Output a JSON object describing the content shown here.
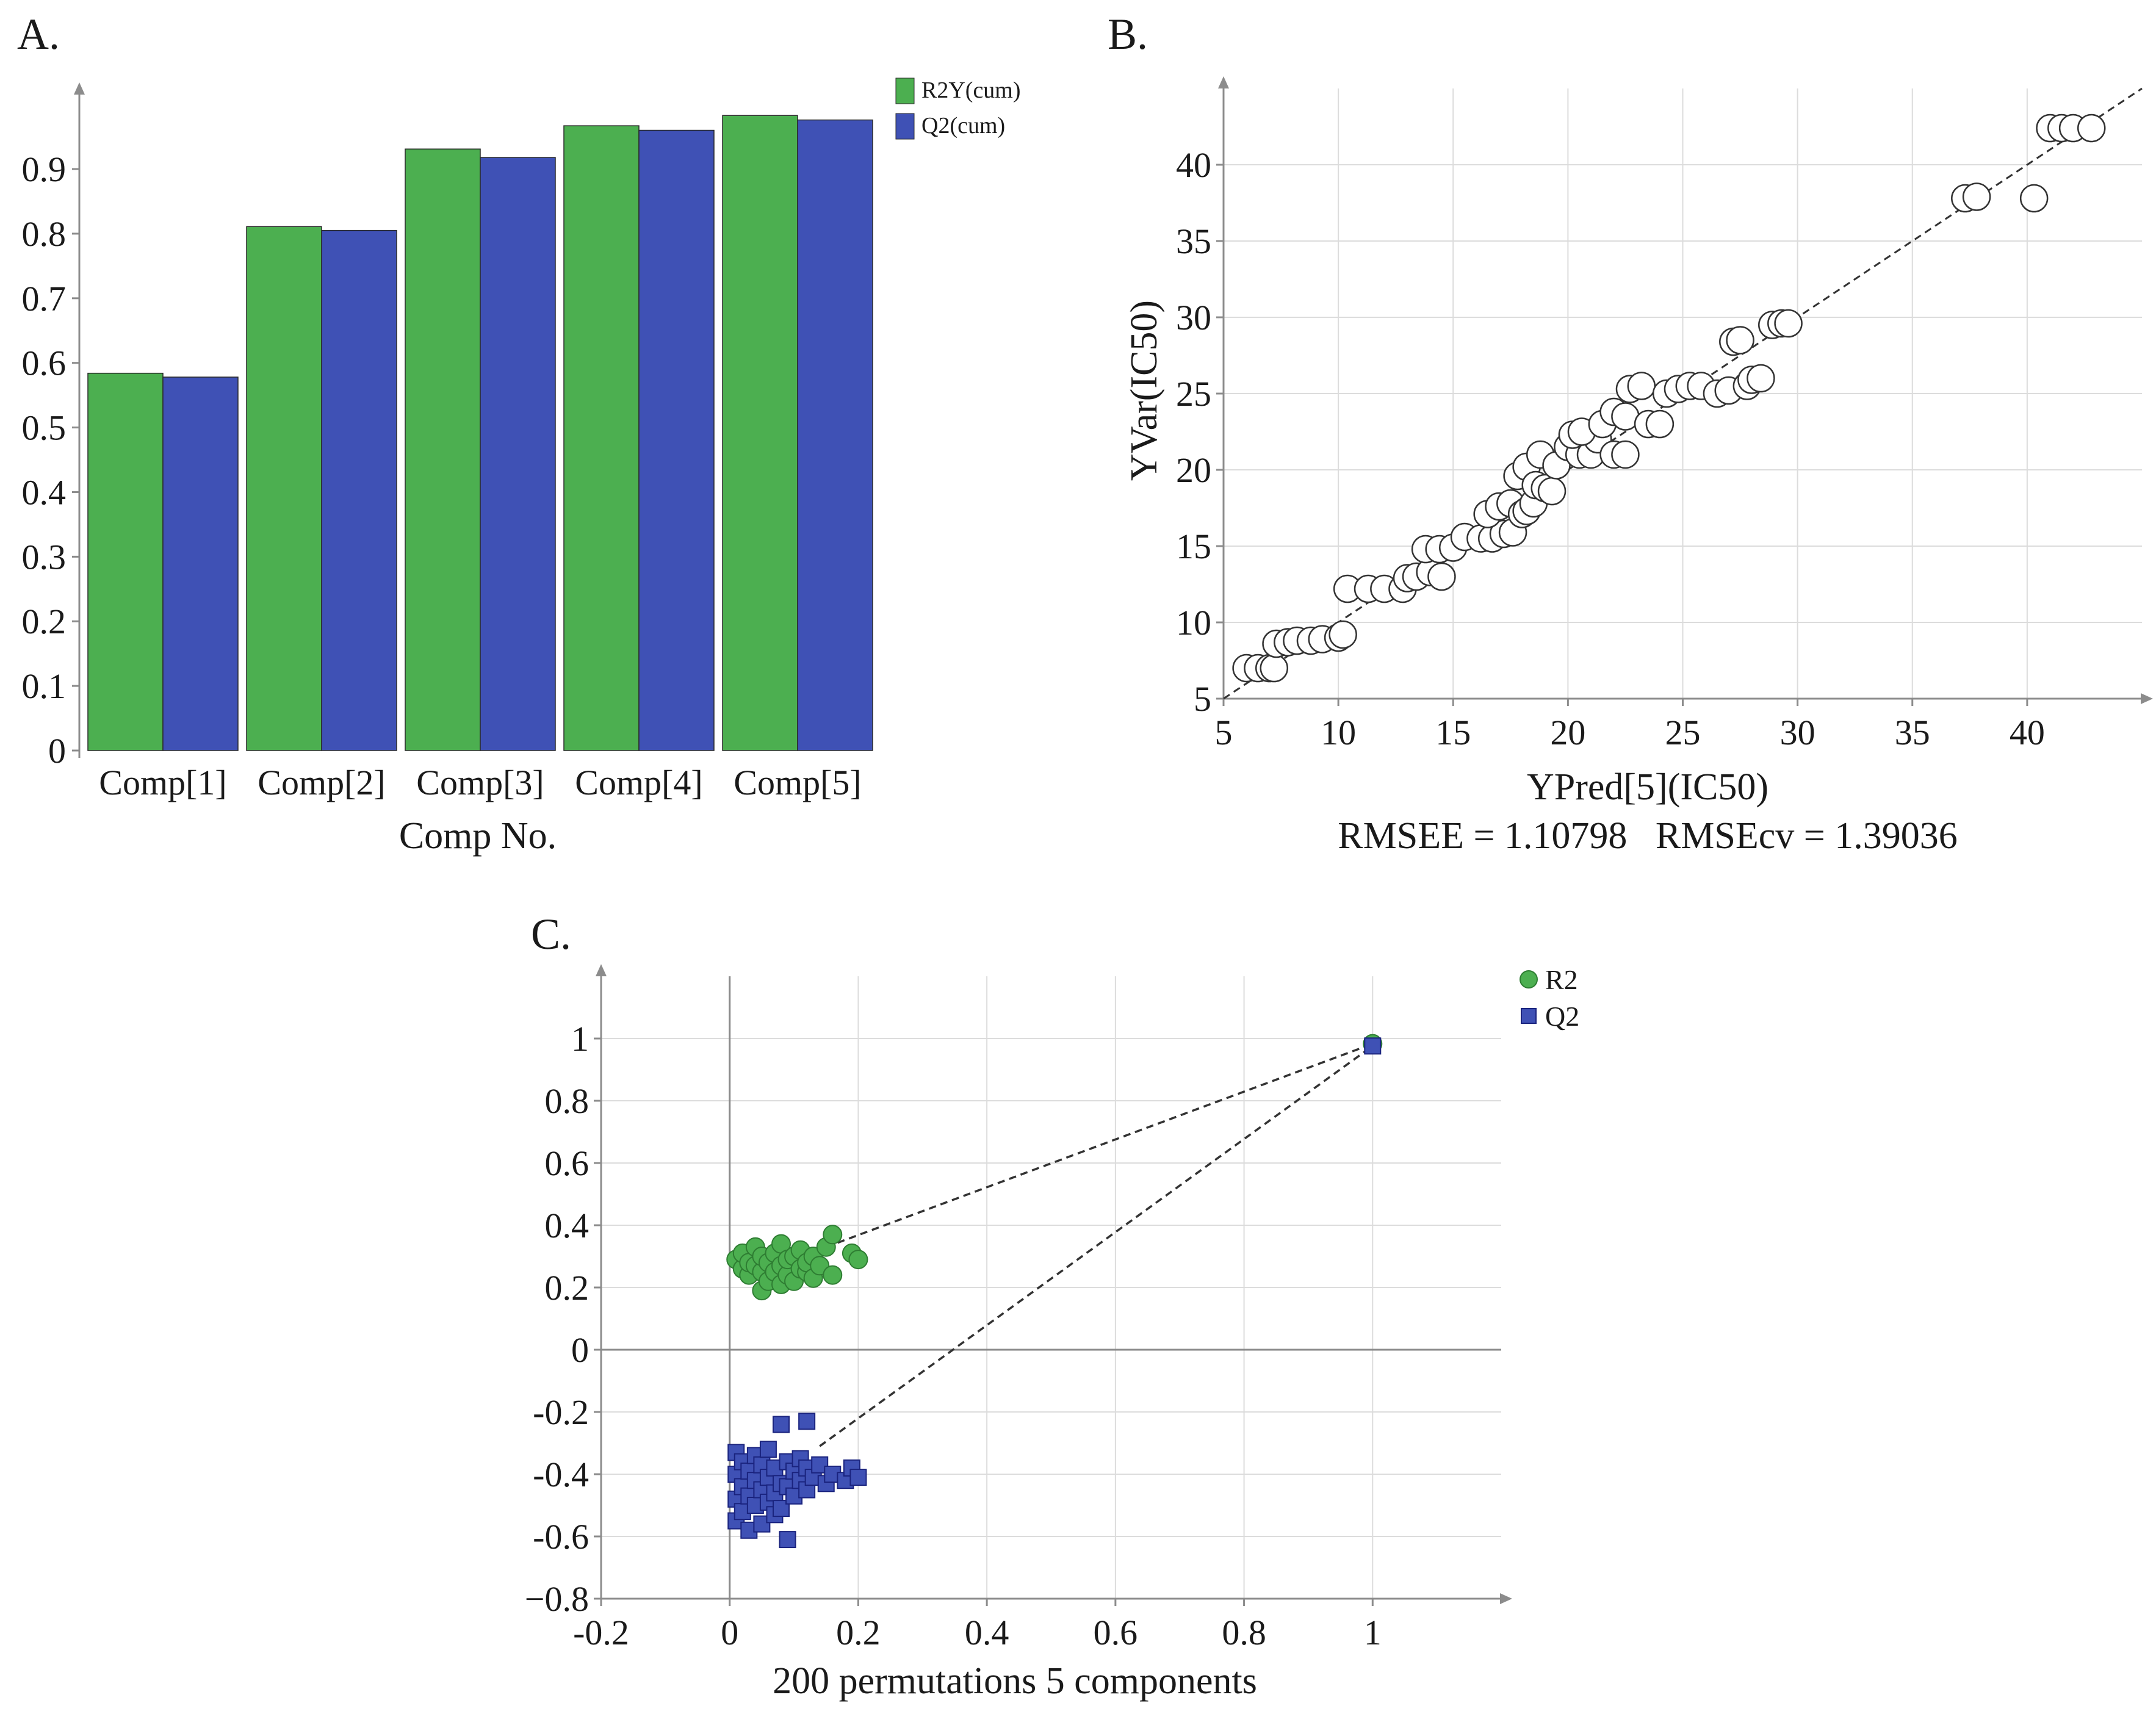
{
  "colors": {
    "green": "#4caf50",
    "blue": "#3f51b5",
    "grid": "#dcdcdc",
    "axis": "#8c8c8c",
    "dashed": "#333333"
  },
  "chart_data": [
    {
      "panel": "A.",
      "type": "bar",
      "title": "",
      "xlabel": "Comp No.",
      "ylabel": "",
      "categories": [
        "Comp[1]",
        "Comp[2]",
        "Comp[3]",
        "Comp[4]",
        "Comp[5]"
      ],
      "series": [
        {
          "name": "R2Y(cum)",
          "color": "#4caf50",
          "values": [
            0.584,
            0.811,
            0.931,
            0.967,
            0.983
          ]
        },
        {
          "name": "Q2(cum)",
          "color": "#3f51b5",
          "values": [
            0.578,
            0.805,
            0.918,
            0.96,
            0.976
          ]
        }
      ],
      "ylim": [
        0,
        1.02
      ],
      "yticks": [
        0,
        0.1,
        0.2,
        0.3,
        0.4,
        0.5,
        0.6,
        0.7,
        0.8,
        0.9
      ],
      "ytick_labels": [
        "0",
        "0.1",
        "0.2",
        "0.3",
        "0.4",
        "0.5",
        "0.6",
        "0.7",
        "0.8",
        "0.9"
      ],
      "legend": "top-right"
    },
    {
      "panel": "B.",
      "type": "scatter",
      "title": "",
      "xlabel": "YPred[5](IC50)",
      "ylabel": "YVar(IC50)",
      "xlim": [
        5,
        45
      ],
      "ylim": [
        5,
        45
      ],
      "xticks": [
        5,
        10,
        15,
        20,
        25,
        30,
        35,
        40
      ],
      "xtick_labels": [
        "5",
        "10",
        "15",
        "20",
        "25",
        "30",
        "35",
        "40"
      ],
      "yticks": [
        5,
        10,
        15,
        20,
        25,
        30,
        35,
        40
      ],
      "ytick_labels": [
        "5",
        "10",
        "15",
        "20",
        "25",
        "30",
        "35",
        "40"
      ],
      "annotation": "RMSEE = 1.10798   RMSEcv = 1.39036",
      "fit_line": [
        [
          5,
          5
        ],
        [
          45,
          45
        ]
      ],
      "points": [
        [
          6.0,
          7.0
        ],
        [
          6.5,
          7.0
        ],
        [
          7.0,
          7.0
        ],
        [
          7.2,
          7.0
        ],
        [
          7.3,
          8.6
        ],
        [
          7.8,
          8.7
        ],
        [
          8.2,
          8.8
        ],
        [
          8.8,
          8.8
        ],
        [
          9.3,
          8.9
        ],
        [
          10.0,
          9.0
        ],
        [
          10.2,
          9.2
        ],
        [
          10.4,
          12.2
        ],
        [
          11.3,
          12.2
        ],
        [
          12.0,
          12.2
        ],
        [
          12.8,
          12.2
        ],
        [
          13.0,
          12.9
        ],
        [
          13.4,
          13.0
        ],
        [
          14.0,
          13.3
        ],
        [
          14.5,
          13.0
        ],
        [
          13.8,
          14.8
        ],
        [
          14.4,
          14.8
        ],
        [
          15.0,
          14.9
        ],
        [
          15.5,
          15.6
        ],
        [
          16.2,
          15.5
        ],
        [
          16.7,
          15.5
        ],
        [
          17.2,
          15.8
        ],
        [
          17.6,
          15.9
        ],
        [
          16.5,
          17.1
        ],
        [
          17.0,
          17.6
        ],
        [
          17.5,
          17.8
        ],
        [
          18.0,
          17.1
        ],
        [
          18.2,
          17.3
        ],
        [
          18.5,
          17.8
        ],
        [
          17.8,
          19.6
        ],
        [
          18.2,
          20.2
        ],
        [
          18.6,
          19.0
        ],
        [
          19.0,
          18.8
        ],
        [
          19.3,
          18.6
        ],
        [
          18.8,
          21.0
        ],
        [
          19.5,
          20.3
        ],
        [
          20.0,
          21.5
        ],
        [
          20.5,
          21.0
        ],
        [
          21.0,
          21.0
        ],
        [
          21.3,
          22.0
        ],
        [
          20.2,
          22.3
        ],
        [
          20.6,
          22.5
        ],
        [
          21.5,
          23.0
        ],
        [
          22.0,
          21.0
        ],
        [
          22.5,
          21.0
        ],
        [
          22.0,
          23.8
        ],
        [
          22.5,
          23.5
        ],
        [
          22.7,
          25.3
        ],
        [
          23.2,
          25.5
        ],
        [
          23.5,
          23.0
        ],
        [
          24.0,
          23.0
        ],
        [
          24.3,
          25.0
        ],
        [
          24.8,
          25.3
        ],
        [
          25.3,
          25.5
        ],
        [
          25.8,
          25.5
        ],
        [
          26.5,
          25.0
        ],
        [
          27.0,
          25.2
        ],
        [
          27.2,
          28.4
        ],
        [
          27.5,
          28.5
        ],
        [
          27.8,
          25.5
        ],
        [
          28.0,
          25.9
        ],
        [
          28.4,
          26.0
        ],
        [
          28.9,
          29.5
        ],
        [
          29.3,
          29.6
        ],
        [
          29.6,
          29.6
        ],
        [
          37.3,
          37.8
        ],
        [
          37.8,
          37.9
        ],
        [
          40.3,
          37.8
        ],
        [
          41.0,
          42.4
        ],
        [
          41.5,
          42.4
        ],
        [
          42.0,
          42.4
        ],
        [
          42.8,
          42.4
        ]
      ]
    },
    {
      "panel": "C.",
      "type": "scatter",
      "title": "",
      "xlabel": "200 permutations 5 components",
      "ylabel": "",
      "xlim": [
        -0.2,
        1.2
      ],
      "ylim": [
        -0.8,
        1.2
      ],
      "xticks": [
        -0.2,
        0,
        0.2,
        0.4,
        0.6,
        0.8,
        1
      ],
      "xtick_labels": [
        "-0.2",
        "0",
        "0.2",
        "0.4",
        "0.6",
        "0.8",
        "1"
      ],
      "yticks": [
        -0.8,
        -0.6,
        -0.4,
        -0.2,
        0,
        0.2,
        0.4,
        0.6,
        0.8,
        1
      ],
      "ytick_labels": [
        "−0.8",
        "-0.6",
        "-0.4",
        "-0.2",
        "0",
        "0.2",
        "0.4",
        "0.6",
        "0.8",
        "1"
      ],
      "legend": "top-right",
      "series": [
        {
          "name": "R2",
          "marker": "circle",
          "color": "#4caf50",
          "points": [
            [
              0.01,
              0.29
            ],
            [
              0.02,
              0.26
            ],
            [
              0.02,
              0.31
            ],
            [
              0.03,
              0.24
            ],
            [
              0.03,
              0.28
            ],
            [
              0.04,
              0.27
            ],
            [
              0.04,
              0.33
            ],
            [
              0.05,
              0.19
            ],
            [
              0.05,
              0.25
            ],
            [
              0.05,
              0.3
            ],
            [
              0.06,
              0.22
            ],
            [
              0.06,
              0.28
            ],
            [
              0.07,
              0.31
            ],
            [
              0.07,
              0.25
            ],
            [
              0.08,
              0.21
            ],
            [
              0.08,
              0.27
            ],
            [
              0.08,
              0.34
            ],
            [
              0.09,
              0.24
            ],
            [
              0.09,
              0.29
            ],
            [
              0.1,
              0.22
            ],
            [
              0.1,
              0.3
            ],
            [
              0.11,
              0.26
            ],
            [
              0.11,
              0.32
            ],
            [
              0.12,
              0.25
            ],
            [
              0.12,
              0.28
            ],
            [
              0.13,
              0.23
            ],
            [
              0.13,
              0.3
            ],
            [
              0.14,
              0.27
            ],
            [
              0.15,
              0.33
            ],
            [
              0.16,
              0.24
            ],
            [
              0.16,
              0.37
            ],
            [
              0.19,
              0.31
            ],
            [
              0.2,
              0.29
            ]
          ],
          "reference": [
            1.0,
            0.983
          ],
          "intercept_line": [
            [
              0.15,
              0.33
            ],
            [
              1.0,
              0.983
            ]
          ]
        },
        {
          "name": "Q2",
          "marker": "square",
          "color": "#3f51b5",
          "points": [
            [
              0.01,
              -0.33
            ],
            [
              0.01,
              -0.4
            ],
            [
              0.01,
              -0.48
            ],
            [
              0.01,
              -0.55
            ],
            [
              0.02,
              -0.36
            ],
            [
              0.02,
              -0.44
            ],
            [
              0.02,
              -0.52
            ],
            [
              0.03,
              -0.39
            ],
            [
              0.03,
              -0.47
            ],
            [
              0.03,
              -0.58
            ],
            [
              0.04,
              -0.34
            ],
            [
              0.04,
              -0.42
            ],
            [
              0.04,
              -0.5
            ],
            [
              0.05,
              -0.37
            ],
            [
              0.05,
              -0.45
            ],
            [
              0.05,
              -0.56
            ],
            [
              0.06,
              -0.32
            ],
            [
              0.06,
              -0.41
            ],
            [
              0.06,
              -0.49
            ],
            [
              0.07,
              -0.38
            ],
            [
              0.07,
              -0.46
            ],
            [
              0.07,
              -0.53
            ],
            [
              0.08,
              -0.43
            ],
            [
              0.08,
              -0.51
            ],
            [
              0.08,
              -0.24
            ],
            [
              0.09,
              -0.36
            ],
            [
              0.09,
              -0.44
            ],
            [
              0.09,
              -0.61
            ],
            [
              0.1,
              -0.39
            ],
            [
              0.1,
              -0.47
            ],
            [
              0.11,
              -0.35
            ],
            [
              0.11,
              -0.42
            ],
            [
              0.12,
              -0.38
            ],
            [
              0.12,
              -0.45
            ],
            [
              0.12,
              -0.23
            ],
            [
              0.13,
              -0.41
            ],
            [
              0.14,
              -0.37
            ],
            [
              0.15,
              -0.43
            ],
            [
              0.16,
              -0.4
            ],
            [
              0.18,
              -0.42
            ],
            [
              0.19,
              -0.38
            ],
            [
              0.2,
              -0.41
            ]
          ],
          "reference": [
            1.0,
            0.976
          ],
          "intercept_line": [
            [
              0.14,
              -0.31
            ],
            [
              1.0,
              0.976
            ]
          ]
        }
      ]
    }
  ]
}
